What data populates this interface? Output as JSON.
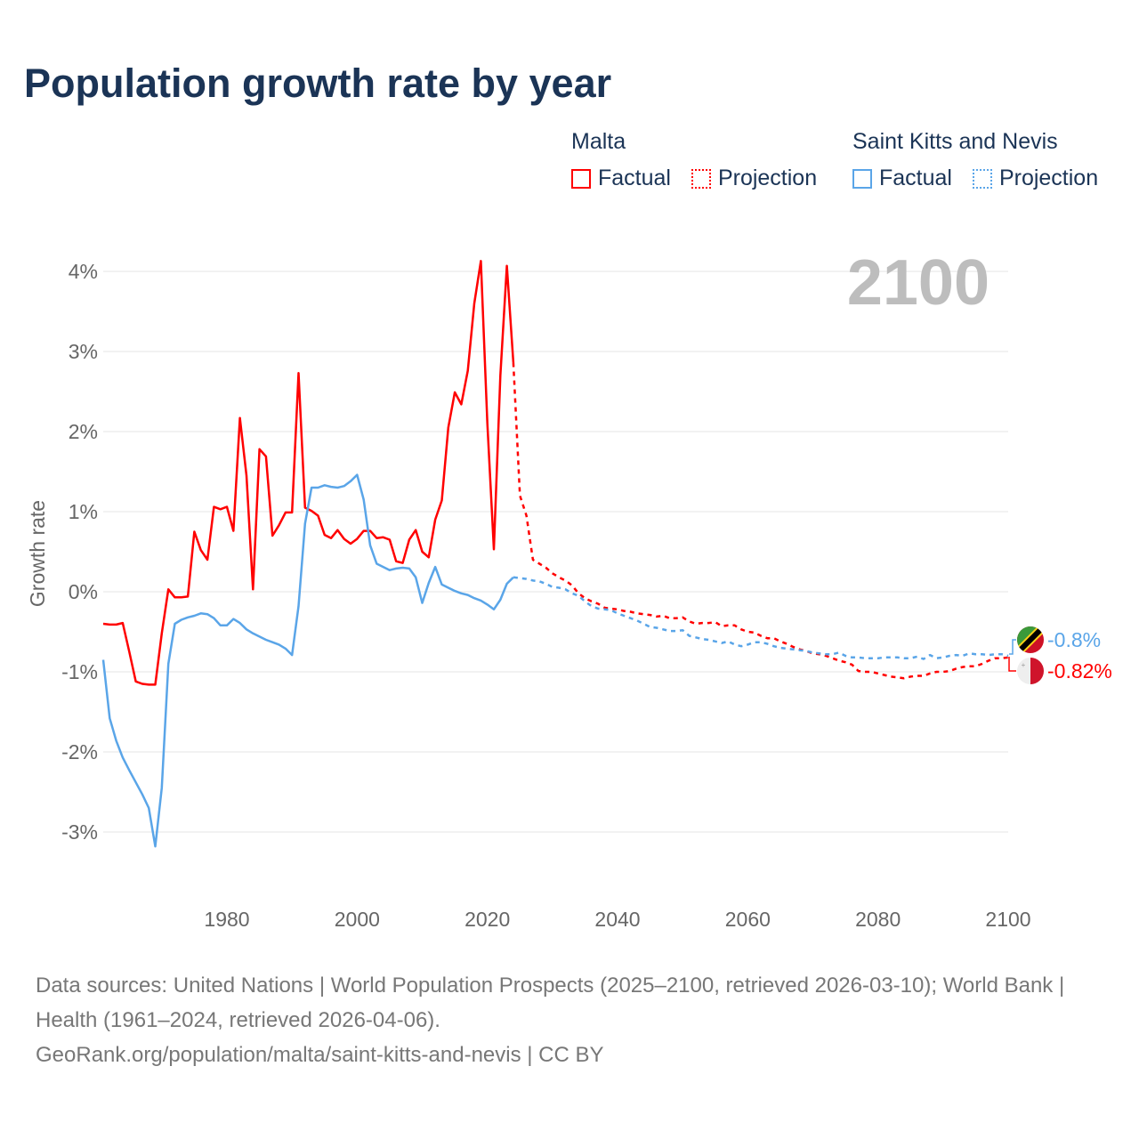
{
  "title": "Population growth rate by year",
  "year_watermark": "2100",
  "legend": [
    {
      "group": "Malta",
      "color": "#ff0000",
      "factual": "Factual",
      "projection": "Projection"
    },
    {
      "group": "Saint Kitts and Nevis",
      "color": "#5aa5e8",
      "factual": "Factual",
      "projection": "Projection"
    }
  ],
  "end_labels": {
    "skn": "-0.8%",
    "malta": "-0.82%"
  },
  "footer": {
    "sources": "Data sources: United Nations | World Population Prospects (2025–2100, retrieved 2026-03-10); World Bank | Health (1961–2024, retrieved 2026-04-06).",
    "credit": "GeoRank.org/population/malta/saint-kitts-and-nevis | CC BY"
  },
  "chart_data": {
    "type": "line",
    "ylabel": "Growth rate",
    "xlim": [
      1961,
      2100
    ],
    "ylim": [
      -3.5,
      4.3
    ],
    "x_ticks": [
      "1980",
      "2000",
      "2020",
      "2040",
      "2060",
      "2080",
      "2100"
    ],
    "y_ticks": [
      "4%",
      "3%",
      "2%",
      "1%",
      "0%",
      "-1%",
      "-2%",
      "-3%"
    ],
    "grid": true,
    "series": [
      {
        "name": "Malta Factual",
        "color": "#ff0000",
        "start": 1961,
        "dashed": false,
        "values": [
          -0.4,
          -0.41,
          -0.41,
          -0.39,
          -0.75,
          -1.12,
          -1.15,
          -1.16,
          -1.16,
          -0.52,
          0.03,
          -0.07,
          -0.07,
          -0.06,
          0.75,
          0.52,
          0.4,
          1.06,
          1.03,
          1.06,
          0.76,
          2.17,
          1.45,
          0.03,
          1.78,
          1.69,
          0.7,
          0.83,
          0.99,
          0.99,
          2.73,
          1.05,
          1.01,
          0.95,
          0.71,
          0.67,
          0.77,
          0.66,
          0.6,
          0.66,
          0.76,
          0.76,
          0.67,
          0.68,
          0.65,
          0.38,
          0.36,
          0.65,
          0.77,
          0.5,
          0.43,
          0.9,
          1.14,
          2.05,
          2.49,
          2.34,
          2.76,
          3.6,
          4.13,
          2.1,
          0.53,
          2.7,
          4.07,
          2.86
        ]
      },
      {
        "name": "Malta Projection",
        "color": "#ff0000",
        "start": 2024,
        "dashed": true,
        "values": [
          2.86,
          1.2,
          0.95,
          0.4,
          0.35,
          0.3,
          0.23,
          0.18,
          0.14,
          0.08,
          -0.02,
          -0.08,
          -0.12,
          -0.15,
          -0.2,
          -0.21,
          -0.22,
          -0.24,
          -0.25,
          -0.27,
          -0.28,
          -0.29,
          -0.31,
          -0.3,
          -0.33,
          -0.33,
          -0.32,
          -0.37,
          -0.4,
          -0.39,
          -0.39,
          -0.38,
          -0.43,
          -0.42,
          -0.42,
          -0.47,
          -0.5,
          -0.51,
          -0.55,
          -0.58,
          -0.58,
          -0.62,
          -0.65,
          -0.69,
          -0.72,
          -0.74,
          -0.77,
          -0.78,
          -0.8,
          -0.83,
          -0.86,
          -0.88,
          -0.91,
          -0.99,
          -1.0,
          -1.0,
          -1.02,
          -1.04,
          -1.06,
          -1.07,
          -1.08,
          -1.06,
          -1.05,
          -1.05,
          -1.02,
          -1.0,
          -1.0,
          -0.99,
          -0.96,
          -0.94,
          -0.93,
          -0.93,
          -0.9,
          -0.86,
          -0.83,
          -0.83,
          -0.82
        ]
      },
      {
        "name": "Saint Kitts and Nevis Factual",
        "color": "#5aa5e8",
        "start": 1961,
        "dashed": false,
        "values": [
          -0.85,
          -1.58,
          -1.86,
          -2.07,
          -2.23,
          -2.38,
          -2.53,
          -2.7,
          -3.18,
          -2.45,
          -0.9,
          -0.4,
          -0.35,
          -0.32,
          -0.3,
          -0.27,
          -0.28,
          -0.33,
          -0.42,
          -0.42,
          -0.34,
          -0.39,
          -0.47,
          -0.52,
          -0.56,
          -0.6,
          -0.63,
          -0.66,
          -0.71,
          -0.79,
          -0.18,
          0.85,
          1.3,
          1.3,
          1.33,
          1.31,
          1.3,
          1.32,
          1.38,
          1.46,
          1.15,
          0.58,
          0.35,
          0.31,
          0.27,
          0.29,
          0.3,
          0.29,
          0.18,
          -0.14,
          0.11,
          0.31,
          0.09,
          0.05,
          0.01,
          -0.02,
          -0.04,
          -0.08,
          -0.11,
          -0.16,
          -0.22,
          -0.1,
          0.1,
          0.18
        ]
      },
      {
        "name": "Saint Kitts and Nevis Projection",
        "color": "#5aa5e8",
        "start": 2024,
        "dashed": true,
        "values": [
          0.18,
          0.17,
          0.16,
          0.14,
          0.13,
          0.1,
          0.06,
          0.05,
          0.03,
          -0.02,
          -0.05,
          -0.12,
          -0.18,
          -0.21,
          -0.22,
          -0.23,
          -0.27,
          -0.3,
          -0.33,
          -0.36,
          -0.4,
          -0.44,
          -0.45,
          -0.47,
          -0.49,
          -0.49,
          -0.48,
          -0.55,
          -0.57,
          -0.59,
          -0.6,
          -0.62,
          -0.64,
          -0.62,
          -0.66,
          -0.68,
          -0.66,
          -0.63,
          -0.63,
          -0.65,
          -0.68,
          -0.7,
          -0.71,
          -0.72,
          -0.73,
          -0.74,
          -0.76,
          -0.77,
          -0.78,
          -0.78,
          -0.76,
          -0.8,
          -0.82,
          -0.82,
          -0.83,
          -0.83,
          -0.83,
          -0.82,
          -0.82,
          -0.82,
          -0.83,
          -0.83,
          -0.81,
          -0.84,
          -0.79,
          -0.83,
          -0.82,
          -0.8,
          -0.79,
          -0.8,
          -0.77,
          -0.78,
          -0.78,
          -0.79,
          -0.78,
          -0.78,
          -0.8
        ]
      }
    ]
  }
}
